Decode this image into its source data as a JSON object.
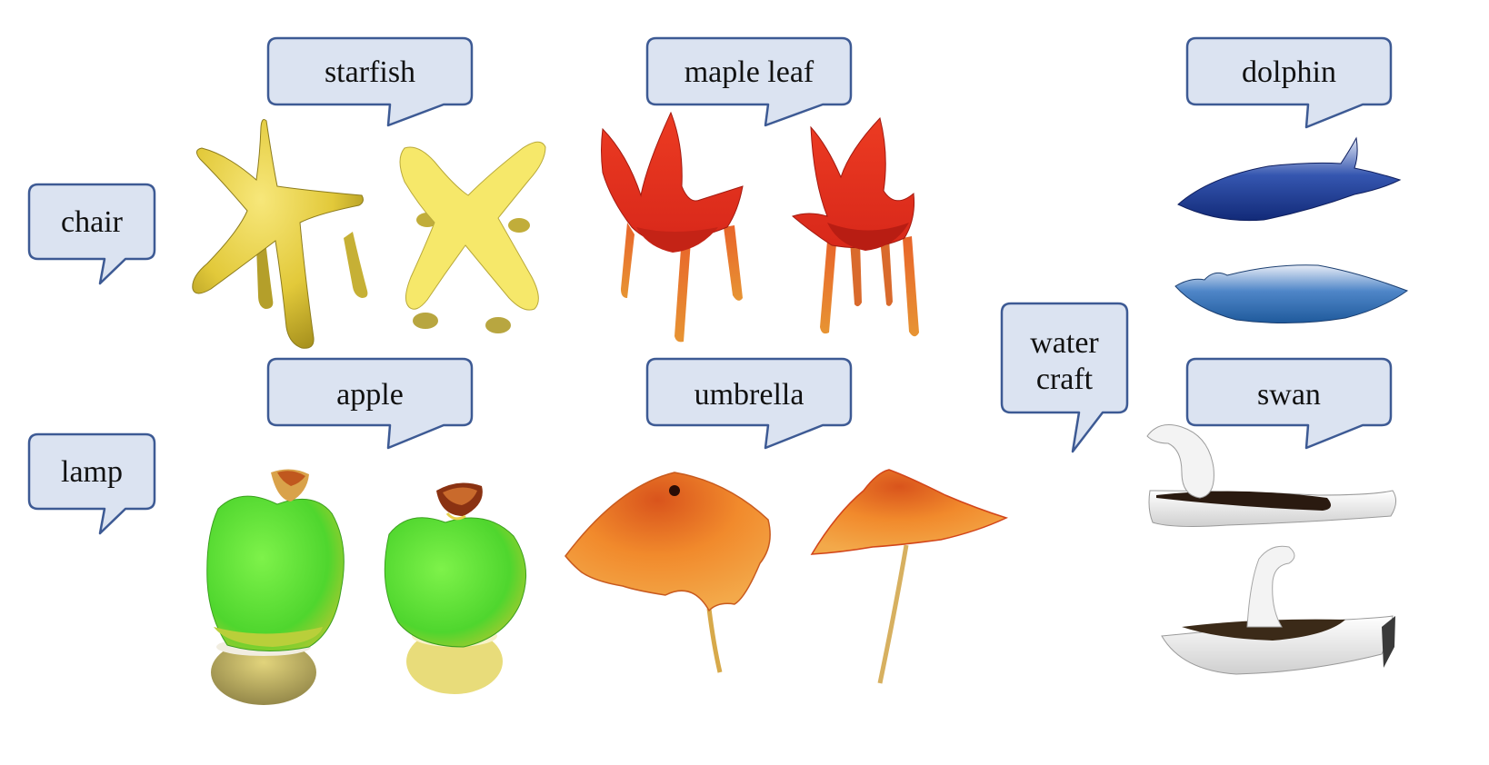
{
  "categories": {
    "chair": "chair",
    "lamp": "lamp",
    "watercraft_line1": "water",
    "watercraft_line2": "craft"
  },
  "concepts": {
    "starfish": "starfish",
    "maple_leaf": "maple leaf",
    "apple": "apple",
    "umbrella": "umbrella",
    "dolphin": "dolphin",
    "swan": "swan"
  },
  "colors": {
    "bubble_fill": "#dbe3f1",
    "bubble_stroke": "#3d5a94",
    "starfish": "#e6cf3e",
    "maple_leaf": "#e8321e",
    "chair_legs": "#e07a2a",
    "apple_green": "#5ee63a",
    "apple_stem": "#b8501e",
    "lamp_base": "#c9b45a",
    "umbrella": "#f08a2a",
    "dolphin": "#1f3f98",
    "swan": "#f2f2f2"
  }
}
